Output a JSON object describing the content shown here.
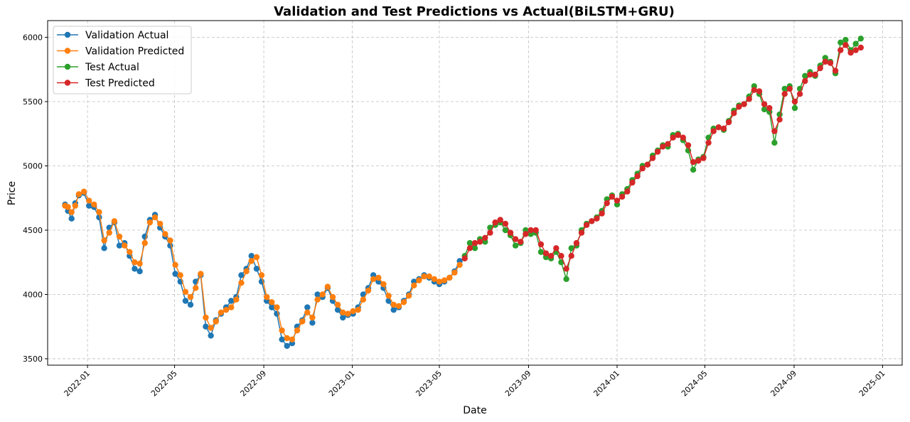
{
  "chart_data": {
    "type": "line",
    "title": "Validation and Test Predictions vs Actual(BiLSTM+GRU)",
    "xlabel": "Date",
    "ylabel": "Price",
    "x_ticks": [
      "2022-01",
      "2022-05",
      "2022-09",
      "2023-01",
      "2023-05",
      "2023-09",
      "2024-01",
      "2024-05",
      "2024-09",
      "2025-01"
    ],
    "x_range": [
      "2021-11-07",
      "2025-01-28"
    ],
    "y_ticks": [
      3500,
      4000,
      4500,
      5000,
      5500,
      6000
    ],
    "ylim": [
      3450,
      6130
    ],
    "grid": true,
    "legend_position": "top-left",
    "marker": "circle",
    "series": [
      {
        "name": "Validation Actual",
        "color": "#1f77b4",
        "x": [
          "2021-12-01",
          "2021-12-05",
          "2021-12-10",
          "2021-12-15",
          "2021-12-20",
          "2021-12-27",
          "2022-01-03",
          "2022-01-10",
          "2022-01-17",
          "2022-01-24",
          "2022-01-31",
          "2022-02-07",
          "2022-02-14",
          "2022-02-21",
          "2022-02-28",
          "2022-03-07",
          "2022-03-14",
          "2022-03-21",
          "2022-03-28",
          "2022-04-04",
          "2022-04-11",
          "2022-04-18",
          "2022-04-25",
          "2022-05-02",
          "2022-05-09",
          "2022-05-16",
          "2022-05-23",
          "2022-05-30",
          "2022-06-06",
          "2022-06-13",
          "2022-06-20",
          "2022-06-27",
          "2022-07-04",
          "2022-07-11",
          "2022-07-18",
          "2022-07-25",
          "2022-08-01",
          "2022-08-08",
          "2022-08-15",
          "2022-08-22",
          "2022-08-29",
          "2022-09-05",
          "2022-09-12",
          "2022-09-19",
          "2022-09-26",
          "2022-10-03",
          "2022-10-10",
          "2022-10-17",
          "2022-10-24",
          "2022-10-31",
          "2022-11-07",
          "2022-11-14",
          "2022-11-21",
          "2022-11-28",
          "2022-12-05",
          "2022-12-12",
          "2022-12-19",
          "2022-12-26",
          "2023-01-02",
          "2023-01-09",
          "2023-01-16",
          "2023-01-23",
          "2023-01-30",
          "2023-02-06",
          "2023-02-13",
          "2023-02-20",
          "2023-02-27",
          "2023-03-06",
          "2023-03-13",
          "2023-03-20",
          "2023-03-27",
          "2023-04-03",
          "2023-04-10",
          "2023-04-17",
          "2023-04-24",
          "2023-05-01",
          "2023-05-08",
          "2023-05-15",
          "2023-05-22",
          "2023-05-29"
        ],
        "values": [
          4700,
          4650,
          4590,
          4710,
          4770,
          4790,
          4690,
          4680,
          4600,
          4360,
          4520,
          4560,
          4380,
          4400,
          4300,
          4200,
          4180,
          4450,
          4580,
          4620,
          4520,
          4450,
          4380,
          4160,
          4100,
          3950,
          3920,
          4100,
          4150,
          3750,
          3680,
          3800,
          3850,
          3900,
          3950,
          3980,
          4150,
          4200,
          4300,
          4200,
          4100,
          3950,
          3900,
          3850,
          3650,
          3600,
          3620,
          3750,
          3800,
          3900,
          3780,
          4000,
          3980,
          4050,
          3950,
          3880,
          3820,
          3840,
          3850,
          3900,
          4000,
          4050,
          4150,
          4100,
          4050,
          3950,
          3880,
          3900,
          3950,
          4000,
          4100,
          4120,
          4150,
          4130,
          4100,
          4080,
          4100,
          4130,
          4180,
          4260
        ]
      },
      {
        "name": "Validation Predicted",
        "color": "#ff7f0e",
        "x": [
          "2021-12-01",
          "2021-12-05",
          "2021-12-10",
          "2021-12-15",
          "2021-12-20",
          "2021-12-27",
          "2022-01-03",
          "2022-01-10",
          "2022-01-17",
          "2022-01-24",
          "2022-01-31",
          "2022-02-07",
          "2022-02-14",
          "2022-02-21",
          "2022-02-28",
          "2022-03-07",
          "2022-03-14",
          "2022-03-21",
          "2022-03-28",
          "2022-04-04",
          "2022-04-11",
          "2022-04-18",
          "2022-04-25",
          "2022-05-02",
          "2022-05-09",
          "2022-05-16",
          "2022-05-23",
          "2022-05-30",
          "2022-06-06",
          "2022-06-13",
          "2022-06-20",
          "2022-06-27",
          "2022-07-04",
          "2022-07-11",
          "2022-07-18",
          "2022-07-25",
          "2022-08-01",
          "2022-08-08",
          "2022-08-15",
          "2022-08-22",
          "2022-08-29",
          "2022-09-05",
          "2022-09-12",
          "2022-09-19",
          "2022-09-26",
          "2022-10-03",
          "2022-10-10",
          "2022-10-17",
          "2022-10-24",
          "2022-10-31",
          "2022-11-07",
          "2022-11-14",
          "2022-11-21",
          "2022-11-28",
          "2022-12-05",
          "2022-12-12",
          "2022-12-19",
          "2022-12-26",
          "2023-01-02",
          "2023-01-09",
          "2023-01-16",
          "2023-01-23",
          "2023-01-30",
          "2023-02-06",
          "2023-02-13",
          "2023-02-20",
          "2023-02-27",
          "2023-03-06",
          "2023-03-13",
          "2023-03-20",
          "2023-03-27",
          "2023-04-03",
          "2023-04-10",
          "2023-04-17",
          "2023-04-24",
          "2023-05-01",
          "2023-05-08",
          "2023-05-15",
          "2023-05-22",
          "2023-05-29"
        ],
        "values": [
          4690,
          4680,
          4640,
          4690,
          4780,
          4800,
          4730,
          4700,
          4640,
          4420,
          4480,
          4570,
          4450,
          4380,
          4330,
          4250,
          4240,
          4400,
          4560,
          4600,
          4550,
          4470,
          4420,
          4230,
          4150,
          4020,
          3980,
          4050,
          4160,
          3820,
          3740,
          3790,
          3860,
          3880,
          3900,
          3960,
          4090,
          4180,
          4260,
          4290,
          4150,
          3980,
          3940,
          3900,
          3720,
          3660,
          3650,
          3720,
          3790,
          3860,
          3820,
          3960,
          4000,
          4060,
          3980,
          3920,
          3860,
          3850,
          3870,
          3880,
          3960,
          4030,
          4120,
          4130,
          4080,
          3990,
          3920,
          3910,
          3940,
          3990,
          4070,
          4110,
          4140,
          4140,
          4120,
          4100,
          4110,
          4130,
          4170,
          4230
        ]
      },
      {
        "name": "Test Actual",
        "color": "#2ca02c",
        "x": [
          "2023-06-05",
          "2023-06-12",
          "2023-06-19",
          "2023-06-26",
          "2023-07-03",
          "2023-07-10",
          "2023-07-17",
          "2023-07-24",
          "2023-07-31",
          "2023-08-07",
          "2023-08-14",
          "2023-08-21",
          "2023-08-28",
          "2023-09-04",
          "2023-09-11",
          "2023-09-18",
          "2023-09-25",
          "2023-10-02",
          "2023-10-09",
          "2023-10-16",
          "2023-10-23",
          "2023-10-30",
          "2023-11-06",
          "2023-11-13",
          "2023-11-20",
          "2023-11-27",
          "2023-12-04",
          "2023-12-11",
          "2023-12-18",
          "2023-12-25",
          "2024-01-01",
          "2024-01-08",
          "2024-01-15",
          "2024-01-22",
          "2024-01-29",
          "2024-02-05",
          "2024-02-12",
          "2024-02-19",
          "2024-02-26",
          "2024-03-04",
          "2024-03-11",
          "2024-03-18",
          "2024-03-25",
          "2024-04-01",
          "2024-04-08",
          "2024-04-15",
          "2024-04-22",
          "2024-04-29",
          "2024-05-06",
          "2024-05-13",
          "2024-05-20",
          "2024-05-27",
          "2024-06-03",
          "2024-06-10",
          "2024-06-17",
          "2024-06-24",
          "2024-07-01",
          "2024-07-08",
          "2024-07-15",
          "2024-07-22",
          "2024-07-29",
          "2024-08-05",
          "2024-08-12",
          "2024-08-19",
          "2024-08-26",
          "2024-09-02",
          "2024-09-09",
          "2024-09-16",
          "2024-09-23",
          "2024-09-30",
          "2024-10-07",
          "2024-10-14",
          "2024-10-21",
          "2024-10-28",
          "2024-11-04",
          "2024-11-11",
          "2024-11-18",
          "2024-11-25",
          "2024-12-02"
        ],
        "values": [
          4300,
          4400,
          4360,
          4430,
          4410,
          4520,
          4540,
          4560,
          4500,
          4460,
          4380,
          4400,
          4500,
          4470,
          4480,
          4330,
          4290,
          4280,
          4330,
          4250,
          4120,
          4360,
          4380,
          4500,
          4550,
          4570,
          4600,
          4650,
          4740,
          4770,
          4700,
          4780,
          4820,
          4890,
          4940,
          5000,
          5010,
          5080,
          5120,
          5160,
          5150,
          5240,
          5250,
          5200,
          5120,
          4970,
          5050,
          5070,
          5220,
          5290,
          5300,
          5280,
          5350,
          5430,
          5470,
          5480,
          5540,
          5620,
          5560,
          5440,
          5420,
          5180,
          5400,
          5600,
          5620,
          5450,
          5600,
          5700,
          5730,
          5700,
          5780,
          5840,
          5810,
          5720,
          5960,
          5980,
          5900,
          5950,
          5990
        ]
      },
      {
        "name": "Test Predicted",
        "color": "#d62728",
        "x": [
          "2023-06-05",
          "2023-06-12",
          "2023-06-19",
          "2023-06-26",
          "2023-07-03",
          "2023-07-10",
          "2023-07-17",
          "2023-07-24",
          "2023-07-31",
          "2023-08-07",
          "2023-08-14",
          "2023-08-21",
          "2023-08-28",
          "2023-09-04",
          "2023-09-11",
          "2023-09-18",
          "2023-09-25",
          "2023-10-02",
          "2023-10-09",
          "2023-10-16",
          "2023-10-23",
          "2023-10-30",
          "2023-11-06",
          "2023-11-13",
          "2023-11-20",
          "2023-11-27",
          "2023-12-04",
          "2023-12-11",
          "2023-12-18",
          "2023-12-25",
          "2024-01-01",
          "2024-01-08",
          "2024-01-15",
          "2024-01-22",
          "2024-01-29",
          "2024-02-05",
          "2024-02-12",
          "2024-02-19",
          "2024-02-26",
          "2024-03-04",
          "2024-03-11",
          "2024-03-18",
          "2024-03-25",
          "2024-04-01",
          "2024-04-08",
          "2024-04-15",
          "2024-04-22",
          "2024-04-29",
          "2024-05-06",
          "2024-05-13",
          "2024-05-20",
          "2024-05-27",
          "2024-06-03",
          "2024-06-10",
          "2024-06-17",
          "2024-06-24",
          "2024-07-01",
          "2024-07-08",
          "2024-07-15",
          "2024-07-22",
          "2024-07-29",
          "2024-08-05",
          "2024-08-12",
          "2024-08-19",
          "2024-08-26",
          "2024-09-02",
          "2024-09-09",
          "2024-09-16",
          "2024-09-23",
          "2024-09-30",
          "2024-10-07",
          "2024-10-14",
          "2024-10-21",
          "2024-10-28",
          "2024-11-04",
          "2024-11-11",
          "2024-11-18",
          "2024-11-25",
          "2024-12-02"
        ],
        "values": [
          4280,
          4360,
          4400,
          4410,
          4440,
          4480,
          4560,
          4580,
          4550,
          4480,
          4430,
          4410,
          4470,
          4500,
          4500,
          4390,
          4320,
          4300,
          4360,
          4300,
          4200,
          4300,
          4400,
          4480,
          4540,
          4570,
          4590,
          4630,
          4710,
          4760,
          4730,
          4760,
          4800,
          4870,
          4920,
          4980,
          5010,
          5060,
          5110,
          5150,
          5170,
          5220,
          5240,
          5220,
          5160,
          5030,
          5040,
          5060,
          5180,
          5270,
          5300,
          5290,
          5340,
          5410,
          5460,
          5480,
          5520,
          5590,
          5580,
          5480,
          5450,
          5270,
          5360,
          5560,
          5600,
          5500,
          5560,
          5660,
          5710,
          5710,
          5760,
          5810,
          5800,
          5740,
          5900,
          5940,
          5880,
          5900,
          5920
        ]
      }
    ]
  }
}
